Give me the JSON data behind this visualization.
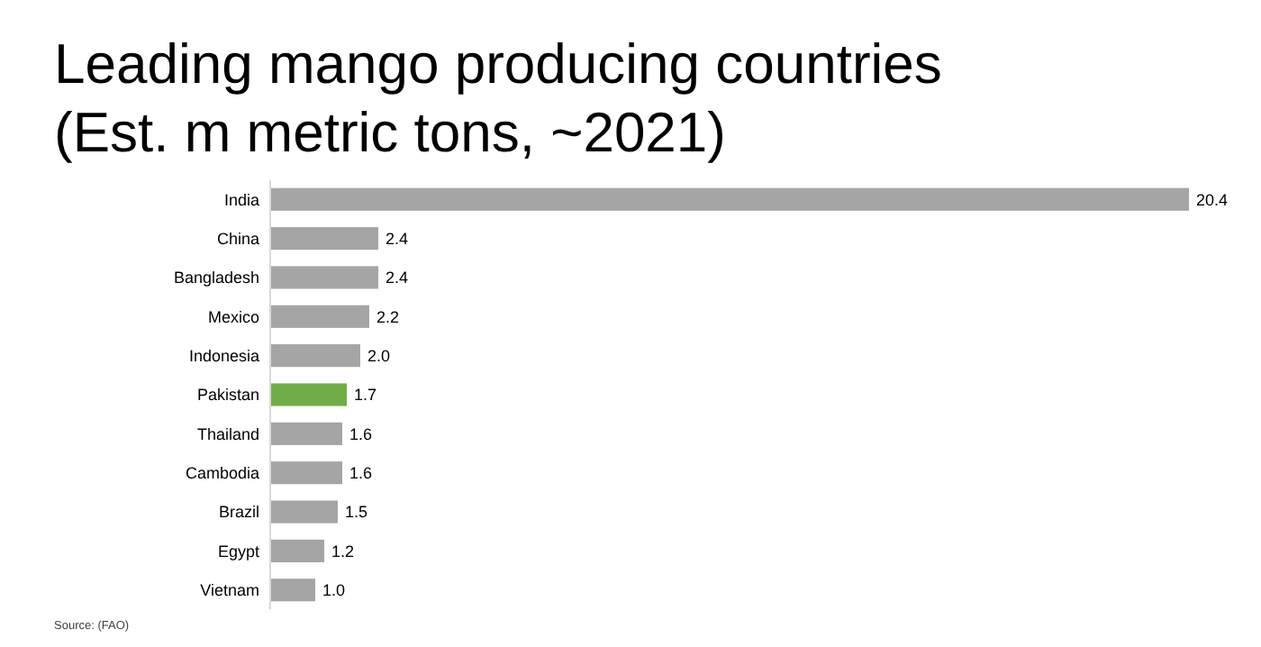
{
  "chart_data": {
    "type": "bar",
    "orientation": "horizontal",
    "title": "Leading mango producing countries (Est. m metric tons, ~2021)",
    "categories": [
      "India",
      "China",
      "Bangladesh",
      "Mexico",
      "Indonesia",
      "Pakistan",
      "Thailand",
      "Cambodia",
      "Brazil",
      "Egypt",
      "Vietnam"
    ],
    "values": [
      20.4,
      2.4,
      2.4,
      2.2,
      2.0,
      1.7,
      1.6,
      1.6,
      1.5,
      1.2,
      1.0
    ],
    "value_labels": [
      "20.4",
      "2.4",
      "2.4",
      "2.2",
      "2.0",
      "1.7",
      "1.6",
      "1.6",
      "1.5",
      "1.2",
      "1.0"
    ],
    "colors": [
      "#a5a5a5",
      "#a5a5a5",
      "#a5a5a5",
      "#a5a5a5",
      "#a5a5a5",
      "#70ad47",
      "#a5a5a5",
      "#a5a5a5",
      "#a5a5a5",
      "#a5a5a5",
      "#a5a5a5"
    ],
    "annotations": [
      "Source: (FAO)"
    ]
  }
}
